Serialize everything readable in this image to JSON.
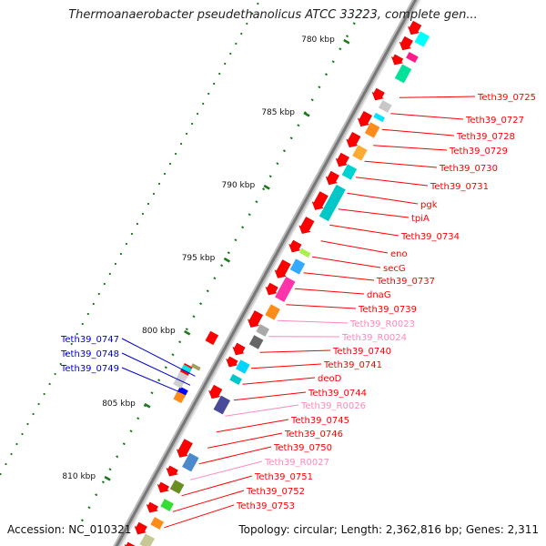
{
  "title": "Thermoanaerobacter pseudethanolicus ATCC 33223, complete gen...",
  "accession": "Accession: NC_010321",
  "summary": "Topology: circular; Length: 2,362,816 bp; Genes: 2,311",
  "colors": {
    "background": "#ffffff",
    "backbone": "#999999",
    "forward_cds": "#ff0000",
    "rna_label": "#ff88bb",
    "left_label": "#0000cc",
    "tick": "#1a7a1a"
  },
  "scale_marks": [
    {
      "label": "780 kbp",
      "kbp": 780
    },
    {
      "label": "785 kbp",
      "kbp": 785
    },
    {
      "label": "790 kbp",
      "kbp": 790
    },
    {
      "label": "795 kbp",
      "kbp": 795
    },
    {
      "label": "800 kbp",
      "kbp": 800
    },
    {
      "label": "805 kbp",
      "kbp": 805
    },
    {
      "label": "810 kbp",
      "kbp": 810
    }
  ],
  "right_labels": [
    {
      "text": "Teth39_0725",
      "type": "cds"
    },
    {
      "text": "Teth39_0727",
      "type": "cds"
    },
    {
      "text": "Teth39_0728",
      "type": "cds"
    },
    {
      "text": "Teth39_0729",
      "type": "cds"
    },
    {
      "text": "Teth39_0730",
      "type": "cds"
    },
    {
      "text": "Teth39_0731",
      "type": "cds"
    },
    {
      "text": "pgk",
      "type": "cds"
    },
    {
      "text": "tpiA",
      "type": "cds"
    },
    {
      "text": "Teth39_0734",
      "type": "cds"
    },
    {
      "text": "eno",
      "type": "cds"
    },
    {
      "text": "secG",
      "type": "cds"
    },
    {
      "text": "Teth39_0737",
      "type": "cds"
    },
    {
      "text": "dnaG",
      "type": "cds"
    },
    {
      "text": "Teth39_0739",
      "type": "cds"
    },
    {
      "text": "Teth39_R0023",
      "type": "rna"
    },
    {
      "text": "Teth39_R0024",
      "type": "rna"
    },
    {
      "text": "Teth39_0740",
      "type": "cds"
    },
    {
      "text": "Teth39_0741",
      "type": "cds"
    },
    {
      "text": "deoD",
      "type": "cds"
    },
    {
      "text": "Teth39_0744",
      "type": "cds"
    },
    {
      "text": "Teth39_R0026",
      "type": "rna"
    },
    {
      "text": "Teth39_0745",
      "type": "cds"
    },
    {
      "text": "Teth39_0746",
      "type": "cds"
    },
    {
      "text": "Teth39_0750",
      "type": "cds"
    },
    {
      "text": "Teth39_R0027",
      "type": "rna"
    },
    {
      "text": "Teth39_0751",
      "type": "cds"
    },
    {
      "text": "Teth39_0752",
      "type": "cds"
    },
    {
      "text": "Teth39_0753",
      "type": "cds"
    }
  ],
  "left_labels": [
    {
      "text": "Teth39_0747"
    },
    {
      "text": "Teth39_0748"
    },
    {
      "text": "Teth39_0749"
    }
  ]
}
